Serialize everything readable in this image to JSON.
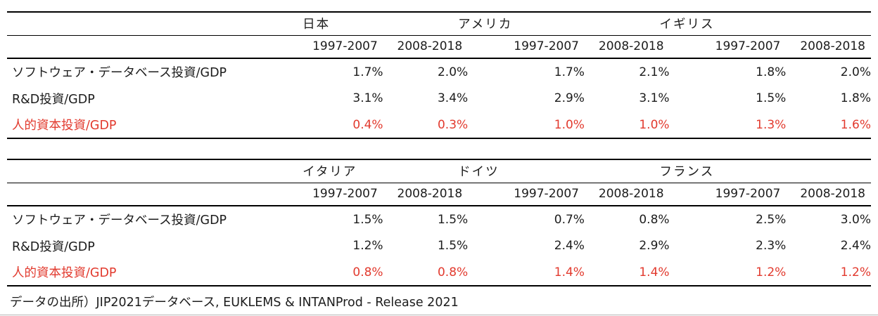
{
  "colors": {
    "accent_red": "#e23a2e",
    "text": "#1c1c1c",
    "rule": "#000000"
  },
  "tables": [
    {
      "countries": [
        "日本",
        "アメリカ",
        "イギリス"
      ],
      "periods": [
        "1997-2007",
        "2008-2018"
      ],
      "rows": [
        {
          "label": "ソフトウェア・データベース投資/GDP",
          "red": false,
          "values": [
            "1.7%",
            "2.0%",
            "1.7%",
            "2.1%",
            "1.8%",
            "2.0%"
          ]
        },
        {
          "label": "R&D投資/GDP",
          "red": false,
          "values": [
            "3.1%",
            "3.4%",
            "2.9%",
            "3.1%",
            "1.5%",
            "1.8%"
          ]
        },
        {
          "label": "人的資本投資/GDP",
          "red": true,
          "values": [
            "0.4%",
            "0.3%",
            "1.0%",
            "1.0%",
            "1.3%",
            "1.6%"
          ]
        }
      ]
    },
    {
      "countries": [
        "イタリア",
        "ドイツ",
        "フランス"
      ],
      "periods": [
        "1997-2007",
        "2008-2018"
      ],
      "rows": [
        {
          "label": "ソフトウェア・データベース投資/GDP",
          "red": false,
          "values": [
            "1.5%",
            "1.5%",
            "0.7%",
            "0.8%",
            "2.5%",
            "3.0%"
          ]
        },
        {
          "label": "R&D投資/GDP",
          "red": false,
          "values": [
            "1.2%",
            "1.5%",
            "2.4%",
            "2.9%",
            "2.3%",
            "2.4%"
          ]
        },
        {
          "label": "人的資本投資/GDP",
          "red": true,
          "values": [
            "0.8%",
            "0.8%",
            "1.4%",
            "1.4%",
            "1.2%",
            "1.2%"
          ]
        }
      ]
    }
  ],
  "footer": {
    "source_note": "データの出所）JIP2021データベース, EUKLEMS & INTANProd - Release 2021"
  }
}
